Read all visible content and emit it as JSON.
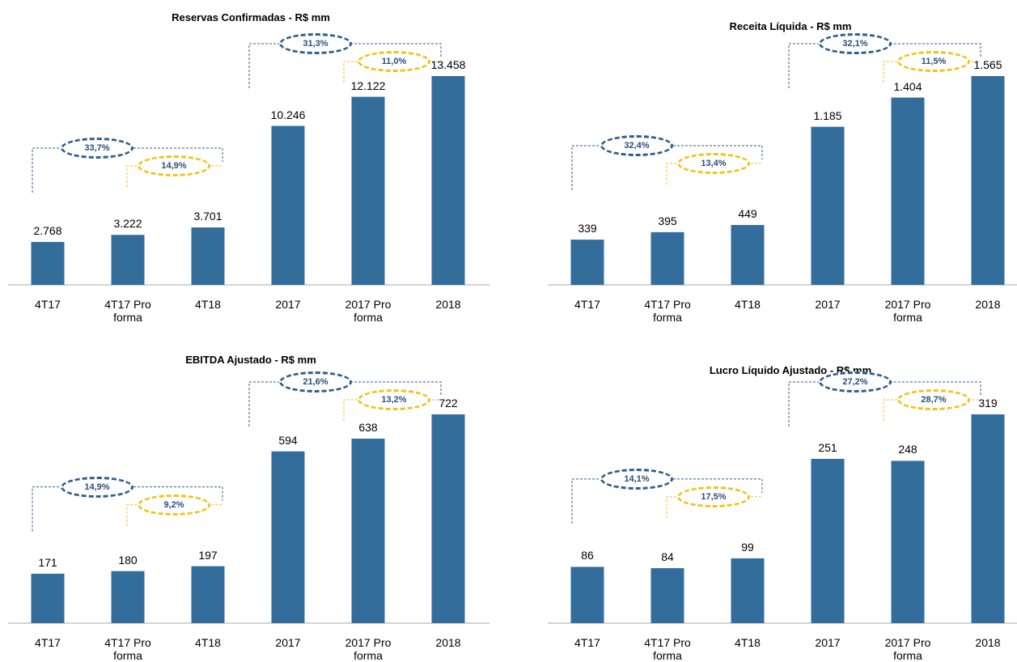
{
  "chart_data": [
    {
      "type": "bar",
      "title": "Reservas Confirmadas - R$ mm",
      "categories": [
        "4T17",
        "4T17 Pro forma",
        "4T18",
        "2017",
        "2017 Pro forma",
        "2018"
      ],
      "values": [
        2768,
        3222,
        3701,
        10246,
        12122,
        13458
      ],
      "value_labels": [
        "2.768",
        "3.222",
        "3.701",
        "10.246",
        "12.122",
        "13.458"
      ],
      "color": "#336d9c",
      "annotations": [
        {
          "text": "33,7%",
          "color": "#2f5d8c"
        },
        {
          "text": "14,9%",
          "color": "#f2c21b"
        },
        {
          "text": "31,3%",
          "color": "#2f5d8c"
        },
        {
          "text": "11,0%",
          "color": "#f2c21b"
        }
      ]
    },
    {
      "type": "bar",
      "title": "Receita Líquida - R$ mm",
      "categories": [
        "4T17",
        "4T17 Pro forma",
        "4T18",
        "2017",
        "2017 Pro forma",
        "2018"
      ],
      "values": [
        339,
        395,
        449,
        1185,
        1404,
        1565
      ],
      "value_labels": [
        "339",
        "395",
        "449",
        "1.185",
        "1.404",
        "1.565"
      ],
      "color": "#336d9c",
      "annotations": [
        {
          "text": "32,4%",
          "color": "#2f5d8c"
        },
        {
          "text": "13,4%",
          "color": "#f2c21b"
        },
        {
          "text": "32,1%",
          "color": "#2f5d8c"
        },
        {
          "text": "11,5%",
          "color": "#f2c21b"
        }
      ]
    },
    {
      "type": "bar",
      "title": "EBITDA  Ajustado - R$ mm",
      "categories": [
        "4T17",
        "4T17 Pro forma",
        "4T18",
        "2017",
        "2017 Pro forma",
        "2018"
      ],
      "values": [
        171,
        180,
        197,
        594,
        638,
        722
      ],
      "color": "#336d9c",
      "annotations": [
        {
          "text": "14,9%",
          "color": "#2f5d8c"
        },
        {
          "text": "9,2%",
          "color": "#f2c21b"
        },
        {
          "text": "21,6%",
          "color": "#2f5d8c"
        },
        {
          "text": "13,2%",
          "color": "#f2c21b"
        }
      ]
    },
    {
      "type": "bar",
      "title": "Lucro Líquido Ajustado - R$ mm",
      "categories": [
        "4T17",
        "4T17 Pro forma",
        "4T18",
        "2017",
        "2017 Pro forma",
        "2018"
      ],
      "values": [
        86,
        84,
        99,
        251,
        248,
        319
      ],
      "color": "#336d9c",
      "annotations": [
        {
          "text": "14,1%",
          "color": "#2f5d8c"
        },
        {
          "text": "17,5%",
          "color": "#f2c21b"
        },
        {
          "text": "27,2%",
          "color": "#2f5d8c"
        },
        {
          "text": "28,7%",
          "color": "#f2c21b"
        }
      ]
    }
  ]
}
